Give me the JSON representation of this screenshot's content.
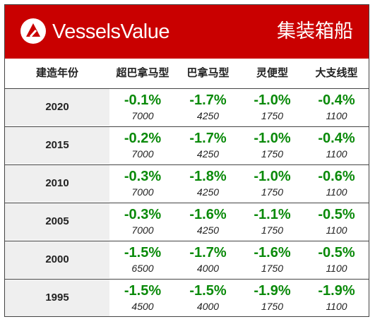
{
  "header": {
    "brand": "VesselsValue",
    "title": "集装箱船"
  },
  "colors": {
    "banner": "#c90000",
    "value_text": "#0a8a0a",
    "year_column_bg": "#efefef"
  },
  "icons": {
    "logo": "vesselsvalue-logo-icon"
  },
  "chart_data": {
    "type": "table",
    "columns": [
      "建造年份",
      "超巴拿马型",
      "巴拿马型",
      "灵便型",
      "大支线型"
    ],
    "rows": [
      {
        "year": "2020",
        "cells": [
          {
            "change": "-0.1%",
            "size": "7000"
          },
          {
            "change": "-1.7%",
            "size": "4250"
          },
          {
            "change": "-1.0%",
            "size": "1750"
          },
          {
            "change": "-0.4%",
            "size": "1100"
          }
        ]
      },
      {
        "year": "2015",
        "cells": [
          {
            "change": "-0.2%",
            "size": "7000"
          },
          {
            "change": "-1.7%",
            "size": "4250"
          },
          {
            "change": "-1.0%",
            "size": "1750"
          },
          {
            "change": "-0.4%",
            "size": "1100"
          }
        ]
      },
      {
        "year": "2010",
        "cells": [
          {
            "change": "-0.3%",
            "size": "7000"
          },
          {
            "change": "-1.8%",
            "size": "4250"
          },
          {
            "change": "-1.0%",
            "size": "1750"
          },
          {
            "change": "-0.6%",
            "size": "1100"
          }
        ]
      },
      {
        "year": "2005",
        "cells": [
          {
            "change": "-0.3%",
            "size": "7000"
          },
          {
            "change": "-1.6%",
            "size": "4250"
          },
          {
            "change": "-1.1%",
            "size": "1750"
          },
          {
            "change": "-0.5%",
            "size": "1100"
          }
        ]
      },
      {
        "year": "2000",
        "cells": [
          {
            "change": "-1.5%",
            "size": "6500"
          },
          {
            "change": "-1.7%",
            "size": "4000"
          },
          {
            "change": "-1.6%",
            "size": "1750"
          },
          {
            "change": "-0.5%",
            "size": "1100"
          }
        ]
      },
      {
        "year": "1995",
        "cells": [
          {
            "change": "-1.5%",
            "size": "4500"
          },
          {
            "change": "-1.5%",
            "size": "4000"
          },
          {
            "change": "-1.9%",
            "size": "1750"
          },
          {
            "change": "-1.9%",
            "size": "1100"
          }
        ]
      }
    ]
  }
}
